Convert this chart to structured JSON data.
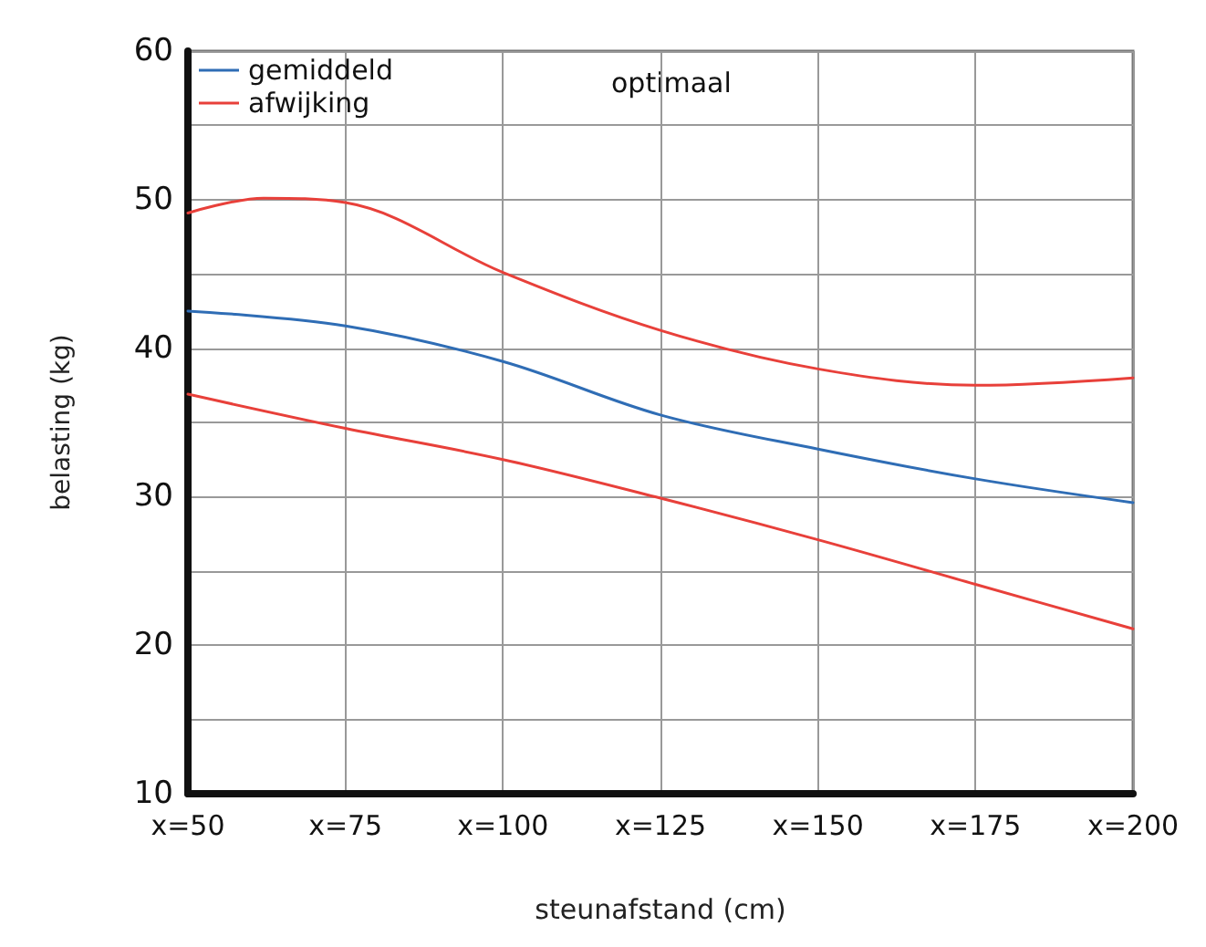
{
  "chart_data": {
    "type": "line",
    "xlabel": "steunafstand (cm)",
    "ylabel": "belasting (kg)",
    "annotations": [
      "optimaal"
    ],
    "series": [
      {
        "name": "gemiddeld",
        "color": "#2f6db5",
        "x": [
          50,
          75,
          100,
          125,
          150,
          175,
          200
        ],
        "values": [
          42.5,
          41.5,
          39.1,
          35.5,
          33.2,
          31.2,
          29.6
        ]
      },
      {
        "name": "afwijking",
        "color": "#e8403a",
        "x": [
          50,
          62,
          75,
          100,
          125,
          150,
          175,
          200
        ],
        "values": [
          49.1,
          50.1,
          49.8,
          45.1,
          41.2,
          38.6,
          37.5,
          38.0
        ]
      },
      {
        "color": "#e8403a",
        "x": [
          50,
          75,
          100,
          125,
          150,
          175,
          200
        ],
        "values": [
          36.9,
          34.6,
          32.5,
          29.9,
          27.1,
          24.1,
          21.1
        ]
      }
    ],
    "xlim": [
      50,
      200
    ],
    "xticks": [
      {
        "value": 50,
        "label": "x=50"
      },
      {
        "value": 75,
        "label": "x=75"
      },
      {
        "value": 100,
        "label": "x=100"
      },
      {
        "value": 125,
        "label": "x=125"
      },
      {
        "value": 150,
        "label": "x=150"
      },
      {
        "value": 175,
        "label": "x=175"
      },
      {
        "value": 200,
        "label": "x=200"
      }
    ],
    "ylim": [
      10,
      60
    ],
    "yticks": [
      10,
      {
        "value": 15,
        "label": null
      },
      20,
      {
        "value": 25,
        "label": null
      },
      30,
      {
        "value": 35,
        "label": null
      },
      40,
      {
        "value": 45,
        "label": null
      },
      50,
      {
        "value": 55,
        "label": null
      },
      60
    ],
    "grid": true,
    "legend": "top left",
    "marker": "none",
    "line_style": "solid"
  }
}
